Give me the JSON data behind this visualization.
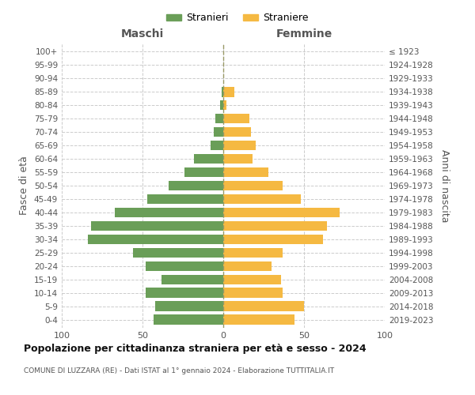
{
  "age_groups": [
    "0-4",
    "5-9",
    "10-14",
    "15-19",
    "20-24",
    "25-29",
    "30-34",
    "35-39",
    "40-44",
    "45-49",
    "50-54",
    "55-59",
    "60-64",
    "65-69",
    "70-74",
    "75-79",
    "80-84",
    "85-89",
    "90-94",
    "95-99",
    "100+"
  ],
  "birth_years": [
    "2019-2023",
    "2014-2018",
    "2009-2013",
    "2004-2008",
    "1999-2003",
    "1994-1998",
    "1989-1993",
    "1984-1988",
    "1979-1983",
    "1974-1978",
    "1969-1973",
    "1964-1968",
    "1959-1963",
    "1954-1958",
    "1949-1953",
    "1944-1948",
    "1939-1943",
    "1934-1938",
    "1929-1933",
    "1924-1928",
    "≤ 1923"
  ],
  "maschi": [
    43,
    42,
    48,
    38,
    48,
    56,
    84,
    82,
    67,
    47,
    34,
    24,
    18,
    8,
    6,
    5,
    2,
    1,
    0,
    0,
    0
  ],
  "femmine": [
    44,
    50,
    37,
    36,
    30,
    37,
    62,
    64,
    72,
    48,
    37,
    28,
    18,
    20,
    17,
    16,
    2,
    7,
    0,
    0,
    0
  ],
  "color_maschi": "#6a9e58",
  "color_femmine": "#f5b942",
  "title": "Popolazione per cittadinanza straniera per età e sesso - 2024",
  "subtitle": "COMUNE DI LUZZARA (RE) - Dati ISTAT al 1° gennaio 2024 - Elaborazione TUTTITALIA.IT",
  "xlabel_left": "Maschi",
  "xlabel_right": "Femmine",
  "ylabel_left": "Fasce di età",
  "ylabel_right": "Anni di nascita",
  "legend_maschi": "Stranieri",
  "legend_femmine": "Straniere",
  "xlim": 100,
  "background_color": "#ffffff",
  "grid_color": "#cccccc"
}
